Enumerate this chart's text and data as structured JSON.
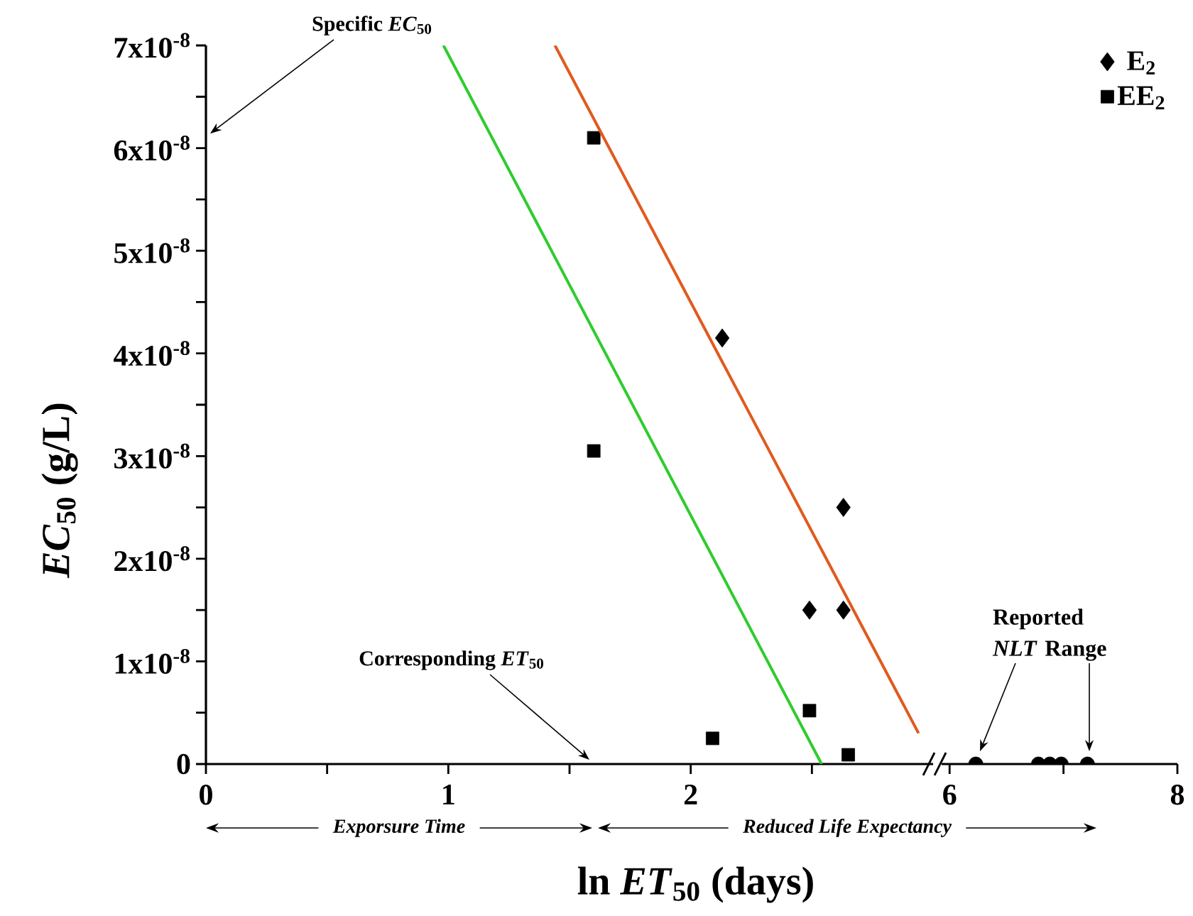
{
  "chart_data": [
    {
      "type": "scatter",
      "xlabel": "ln *ET*$_{50}$ (days)",
      "ylabel": "*EC*$_{50}$ (g/L)",
      "xlim": [
        0,
        3
      ],
      "ylim": [
        0,
        7e-08
      ],
      "xticks": [
        0,
        {
          "value": 0.5,
          "label": null
        },
        1,
        {
          "value": 1.5,
          "label": null
        },
        2,
        {
          "value": 2.5,
          "label": null
        }
      ],
      "yticks": [
        0,
        {
          "value": 5e-09,
          "label": null
        },
        {
          "value": 1e-08,
          "label": "1x10$^{-8}$"
        },
        {
          "value": 1.5e-08,
          "label": null
        },
        {
          "value": 2e-08,
          "label": "2x10$^{-8}$"
        },
        {
          "value": 2.5e-08,
          "label": null
        },
        {
          "value": 3e-08,
          "label": "3x10$^{-8}$"
        },
        {
          "value": 3.5e-08,
          "label": null
        },
        {
          "value": 4e-08,
          "label": "4x10$^{-8}$"
        },
        {
          "value": 4.5e-08,
          "label": null
        },
        {
          "value": 5e-08,
          "label": "5x10$^{-8}$"
        },
        {
          "value": 5.5e-08,
          "label": null
        },
        {
          "value": 6e-08,
          "label": "6x10$^{-8}$"
        },
        {
          "value": 6.5e-08,
          "label": null
        },
        {
          "value": 7e-08,
          "label": "7x10$^{-8}$"
        }
      ],
      "legend": "top right",
      "series": [
        {
          "name": "E$_{2}$",
          "color": "#000000",
          "marker": "diamond",
          "x": [
            2.13,
            2.63,
            2.49,
            2.63
          ],
          "values": [
            4.15e-08,
            2.5e-08,
            1.5e-08,
            1.5e-08
          ]
        },
        {
          "name": "EE$_{2}$",
          "color": "#000000",
          "marker": "square",
          "x": [
            1.6,
            1.6,
            2.09,
            2.49,
            2.65
          ],
          "values": [
            6.1e-08,
            3.05e-08,
            2.5e-09,
            5.2e-09,
            9e-10
          ]
        },
        {
          "type": "line",
          "color": "#2ecc2e",
          "x": [
            0.98,
            2.54
          ],
          "values": [
            7e-08,
            0
          ]
        },
        {
          "type": "line",
          "color": "#e05a1e",
          "x": [
            1.44,
            2.94
          ],
          "values": [
            7e-08,
            3e-09
          ]
        }
      ],
      "annotations": [
        "Specific *EC*$_{50}$",
        "Corresponding *ET*$_{50}$",
        "Exporsure Time",
        "Reduced Life Expectancy"
      ]
    },
    {
      "type": "scatter",
      "tick_labels": "x",
      "xlim": [
        5.93,
        8
      ],
      "ylim": [
        0,
        7e-08
      ],
      "xticks": [
        6,
        {
          "value": 7,
          "label": null
        },
        8
      ],
      "series": [
        {
          "color": "#000000",
          "marker": "circle",
          "x": [
            6.23,
            6.78,
            6.88,
            6.98,
            7.21
          ],
          "values": [
            0,
            0,
            0,
            0,
            0
          ]
        }
      ],
      "annotations": [
        "Reported *NLT* Range"
      ]
    }
  ]
}
